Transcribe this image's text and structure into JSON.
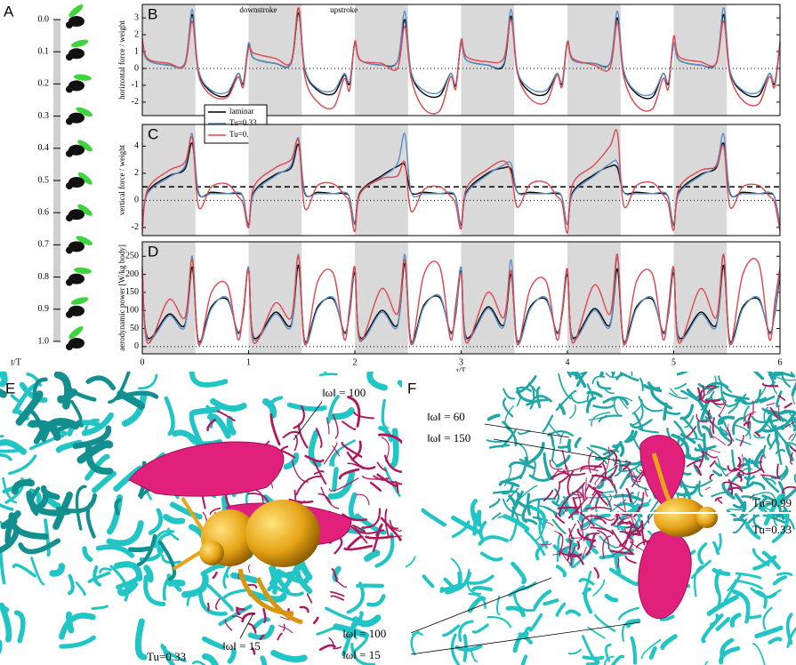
{
  "panel_a": {
    "label": "A",
    "times": [
      "0.0",
      "0.1",
      "0.2",
      "0.3",
      "0.4",
      "0.5",
      "0.6",
      "0.7",
      "0.8",
      "0.9",
      "1.0"
    ],
    "axis_label": "t/T"
  },
  "chart_data": [
    {
      "type": "line",
      "panel_label": "B",
      "ylabel": "horizontal force / weight",
      "xlim": [
        0,
        6
      ],
      "ylim": [
        -2.8,
        3.8
      ],
      "yticks": [
        -2,
        -1,
        0,
        1,
        2,
        3
      ],
      "shaded": [
        [
          0,
          0.5
        ],
        [
          1,
          1.5
        ],
        [
          2,
          2.5
        ],
        [
          3,
          3.5
        ],
        [
          4,
          4.5
        ],
        [
          5,
          5.5
        ]
      ],
      "reference_lines": [
        {
          "y": 0,
          "style": "dotted"
        }
      ],
      "annotations": [
        "downstroke",
        "upstroke"
      ],
      "legend_position": "bottom-left",
      "x": [
        0,
        0.05,
        0.25,
        0.4,
        0.47,
        0.53,
        0.65,
        0.8,
        0.9,
        0.95,
        1,
        1.05,
        1.25,
        1.4,
        1.47,
        1.53,
        1.65,
        1.8,
        1.9,
        1.95,
        2,
        2.05,
        2.25,
        2.4,
        2.47,
        2.53,
        2.65,
        2.8,
        2.9,
        2.95,
        3,
        3.05,
        3.25,
        3.4,
        3.47,
        3.53,
        3.65,
        3.8,
        3.9,
        3.95,
        4,
        4.05,
        4.25,
        4.4,
        4.47,
        4.53,
        4.65,
        4.8,
        4.9,
        4.95,
        5,
        5.05,
        5.25,
        5.4,
        5.47,
        5.53,
        5.65,
        5.8,
        5.9,
        5.95,
        6
      ],
      "series": [
        {
          "name": "laminar",
          "color": "#000000",
          "values": [
            1.5,
            0.5,
            0.2,
            0.3,
            3.2,
            -0.2,
            -1.4,
            -1.6,
            -0.3,
            -0.9,
            1.4,
            0.6,
            0.3,
            0.3,
            3.3,
            -0.1,
            -1.3,
            -1.5,
            -0.4,
            -0.9,
            1.5,
            0.5,
            0.2,
            0.4,
            2.9,
            -0.3,
            -1.5,
            -1.6,
            -0.3,
            -1.0,
            1.5,
            0.5,
            0.2,
            0.2,
            3.1,
            -0.2,
            -1.4,
            -1.5,
            -0.3,
            -0.9,
            1.6,
            0.5,
            0.3,
            0.3,
            3.0,
            -0.2,
            -1.5,
            -1.7,
            -0.3,
            -0.9,
            1.5,
            0.5,
            0.2,
            0.3,
            3.2,
            -0.2,
            -1.4,
            -1.6,
            -0.3,
            -0.9,
            1.5
          ]
        },
        {
          "name": "Tu=0.33",
          "color": "#5b8fc9",
          "values": [
            1.5,
            0.5,
            0.2,
            0.3,
            3.5,
            -0.1,
            -1.3,
            -1.4,
            -0.3,
            -0.8,
            1.5,
            0.6,
            0.3,
            0.3,
            3.6,
            0.0,
            -1.2,
            -1.3,
            -0.3,
            -0.8,
            1.5,
            0.5,
            0.2,
            0.4,
            3.4,
            -0.2,
            -1.3,
            -1.4,
            -0.3,
            -0.9,
            1.5,
            0.5,
            0.2,
            0.3,
            3.5,
            -0.1,
            -1.2,
            -1.3,
            -0.3,
            -0.8,
            1.6,
            0.5,
            0.3,
            0.3,
            3.4,
            -0.1,
            -1.4,
            -1.5,
            -0.3,
            -0.8,
            1.5,
            0.5,
            0.2,
            0.3,
            3.6,
            -0.1,
            -1.3,
            -1.4,
            -0.3,
            -0.8,
            1.5
          ]
        },
        {
          "name": "Tu=0.99",
          "color": "#e0474c",
          "values": [
            1.8,
            0.6,
            0.3,
            0.2,
            2.8,
            -0.4,
            -1.6,
            -1.7,
            -0.5,
            -1.1,
            1.2,
            0.9,
            0.6,
            0.4,
            3.6,
            -0.5,
            -2.0,
            -2.3,
            -0.6,
            -1.3,
            1.6,
            0.5,
            0.3,
            0.0,
            2.5,
            -0.6,
            -2.4,
            -2.5,
            -0.5,
            -1.2,
            1.7,
            0.7,
            0.4,
            0.6,
            2.9,
            -0.3,
            -1.8,
            -2.0,
            -0.4,
            -1.1,
            1.5,
            0.6,
            0.2,
            0.0,
            2.7,
            -0.5,
            -2.2,
            -2.4,
            -0.6,
            -1.2,
            1.9,
            0.7,
            0.4,
            0.3,
            2.8,
            -0.4,
            -1.9,
            -2.1,
            -0.5,
            -1.1,
            1.6
          ]
        }
      ]
    },
    {
      "type": "line",
      "panel_label": "C",
      "ylabel": "vertical force / weight",
      "xlim": [
        0,
        6
      ],
      "ylim": [
        -2.6,
        5.6
      ],
      "yticks": [
        -2,
        0,
        2,
        4
      ],
      "shaded": [
        [
          0,
          0.5
        ],
        [
          1,
          1.5
        ],
        [
          2,
          2.5
        ],
        [
          3,
          3.5
        ],
        [
          4,
          4.5
        ],
        [
          5,
          5.5
        ]
      ],
      "reference_lines": [
        {
          "y": 0,
          "style": "dotted"
        },
        {
          "y": 1,
          "style": "dashed"
        }
      ],
      "x": [
        0,
        0.05,
        0.25,
        0.4,
        0.47,
        0.53,
        0.65,
        0.8,
        0.9,
        0.95,
        1,
        1.05,
        1.25,
        1.4,
        1.47,
        1.53,
        1.65,
        1.8,
        1.9,
        1.95,
        2,
        2.05,
        2.25,
        2.4,
        2.47,
        2.53,
        2.65,
        2.8,
        2.9,
        2.95,
        3,
        3.05,
        3.25,
        3.4,
        3.47,
        3.53,
        3.65,
        3.8,
        3.9,
        3.95,
        4,
        4.05,
        4.25,
        4.4,
        4.47,
        4.53,
        4.65,
        4.8,
        4.9,
        4.95,
        5,
        5.05,
        5.25,
        5.4,
        5.47,
        5.53,
        5.65,
        5.8,
        5.9,
        5.95,
        6
      ],
      "series": [
        {
          "name": "laminar",
          "color": "#000000",
          "values": [
            -1.8,
            0.6,
            1.8,
            2.3,
            4.2,
            0.5,
            0.6,
            0.5,
            0.5,
            0.2,
            -1.8,
            0.6,
            1.9,
            2.4,
            4.1,
            0.5,
            0.6,
            0.5,
            0.5,
            0.2,
            -1.7,
            0.6,
            1.8,
            2.5,
            2.6,
            0.6,
            0.6,
            0.5,
            0.5,
            0.2,
            -1.8,
            0.6,
            2.0,
            2.4,
            2.3,
            0.6,
            0.6,
            0.5,
            0.5,
            0.2,
            -1.8,
            0.6,
            1.9,
            2.5,
            2.4,
            0.6,
            0.6,
            0.5,
            0.5,
            0.2,
            -1.8,
            0.6,
            1.9,
            2.4,
            4.2,
            0.5,
            0.6,
            0.5,
            0.5,
            0.2,
            -1.8
          ]
        },
        {
          "name": "Tu=0.33",
          "color": "#5b8fc9",
          "values": [
            -1.8,
            0.5,
            1.7,
            2.5,
            4.9,
            0.6,
            0.5,
            0.5,
            0.6,
            0.2,
            -1.9,
            0.5,
            1.8,
            2.6,
            4.6,
            0.6,
            0.5,
            0.5,
            0.6,
            0.2,
            -1.8,
            0.5,
            1.7,
            2.7,
            4.9,
            0.6,
            0.5,
            0.5,
            0.6,
            0.2,
            -1.9,
            0.5,
            1.9,
            2.6,
            2.7,
            0.6,
            0.5,
            0.5,
            0.6,
            0.2,
            -1.8,
            0.5,
            1.8,
            2.7,
            2.8,
            0.6,
            0.5,
            0.5,
            0.6,
            0.2,
            -1.9,
            0.5,
            1.8,
            2.6,
            4.9,
            0.6,
            0.5,
            0.5,
            0.6,
            0.2,
            -1.8
          ]
        },
        {
          "name": "Tu=0.99",
          "color": "#e0474c",
          "values": [
            -2.3,
            0.8,
            2.2,
            2.8,
            4.6,
            -0.5,
            1.0,
            1.2,
            0.3,
            -0.3,
            -2.0,
            1.0,
            2.4,
            3.0,
            4.4,
            -0.6,
            1.1,
            1.2,
            0.4,
            -0.2,
            -2.3,
            0.5,
            1.6,
            1.8,
            2.8,
            -0.8,
            0.8,
            1.0,
            0.3,
            -0.3,
            -2.1,
            0.9,
            2.3,
            2.9,
            2.0,
            -0.5,
            1.2,
            1.3,
            0.3,
            -0.2,
            -2.4,
            1.2,
            2.6,
            4.0,
            5.0,
            -0.4,
            1.1,
            1.3,
            0.4,
            -0.3,
            -2.2,
            0.9,
            2.2,
            2.5,
            4.0,
            -0.5,
            1.0,
            1.1,
            0.3,
            -0.2,
            -2.3
          ]
        }
      ]
    },
    {
      "type": "line",
      "panel_label": "D",
      "ylabel": "aerodynamic power [W/kg body]",
      "xlabel": "t/T",
      "xlim": [
        0,
        6
      ],
      "ylim": [
        -20,
        290
      ],
      "yticks": [
        0,
        50,
        100,
        150,
        200,
        250
      ],
      "xticks": [
        0,
        1,
        2,
        3,
        4,
        5,
        6
      ],
      "shaded": [
        [
          0,
          0.5
        ],
        [
          1,
          1.5
        ],
        [
          2,
          2.5
        ],
        [
          3,
          3.5
        ],
        [
          4,
          4.5
        ],
        [
          5,
          5.5
        ]
      ],
      "reference_lines": [
        {
          "y": 0,
          "style": "dotted"
        }
      ],
      "x": [
        0,
        0.05,
        0.25,
        0.4,
        0.47,
        0.53,
        0.65,
        0.8,
        0.9,
        0.95,
        1,
        1.05,
        1.25,
        1.4,
        1.47,
        1.53,
        1.65,
        1.8,
        1.9,
        1.95,
        2,
        2.05,
        2.25,
        2.4,
        2.47,
        2.53,
        2.65,
        2.8,
        2.9,
        2.95,
        3,
        3.05,
        3.25,
        3.4,
        3.47,
        3.53,
        3.65,
        3.8,
        3.9,
        3.95,
        4,
        4.05,
        4.25,
        4.4,
        4.47,
        4.53,
        4.65,
        4.8,
        4.9,
        4.95,
        5,
        5.05,
        5.25,
        5.4,
        5.47,
        5.53,
        5.65,
        5.8,
        5.9,
        5.95,
        6
      ],
      "series": [
        {
          "name": "laminar",
          "color": "#000000",
          "values": [
            200,
            25,
            90,
            60,
            220,
            15,
            110,
            130,
            40,
            90,
            215,
            25,
            95,
            60,
            225,
            15,
            110,
            130,
            40,
            90,
            205,
            25,
            100,
            60,
            230,
            15,
            115,
            135,
            40,
            90,
            210,
            25,
            110,
            60,
            200,
            15,
            110,
            130,
            40,
            90,
            200,
            25,
            105,
            60,
            215,
            15,
            110,
            130,
            40,
            90,
            205,
            25,
            95,
            60,
            225,
            15,
            110,
            130,
            40,
            90,
            200
          ]
        },
        {
          "name": "Tu=0.33",
          "color": "#5b8fc9",
          "values": [
            210,
            20,
            85,
            55,
            250,
            10,
            105,
            135,
            35,
            95,
            220,
            20,
            90,
            55,
            255,
            10,
            105,
            135,
            35,
            95,
            215,
            20,
            95,
            55,
            255,
            10,
            110,
            140,
            35,
            95,
            220,
            20,
            105,
            55,
            240,
            10,
            105,
            135,
            35,
            95,
            210,
            20,
            100,
            55,
            245,
            10,
            105,
            135,
            35,
            95,
            215,
            20,
            90,
            55,
            255,
            10,
            105,
            135,
            35,
            95,
            210
          ]
        },
        {
          "name": "Tu=0.99",
          "color": "#e0474c",
          "values": [
            220,
            10,
            130,
            80,
            240,
            5,
            150,
            170,
            20,
            100,
            210,
            10,
            120,
            80,
            250,
            5,
            180,
            200,
            20,
            110,
            220,
            15,
            160,
            90,
            240,
            5,
            200,
            220,
            20,
            120,
            200,
            10,
            150,
            80,
            210,
            5,
            160,
            180,
            20,
            100,
            215,
            10,
            170,
            90,
            255,
            5,
            180,
            200,
            20,
            110,
            220,
            10,
            160,
            80,
            255,
            5,
            200,
            230,
            20,
            120,
            220
          ]
        }
      ]
    }
  ],
  "panel_e": {
    "label": "E",
    "annotations": [
      "‖ω‖ = 100",
      "‖ω‖ = 15",
      "Tu=0.33"
    ]
  },
  "panel_f": {
    "label": "F",
    "annotations": [
      "‖ω‖ = 60",
      "‖ω‖ = 150",
      "Tu=0.99",
      "Tu=0.33",
      "‖ω‖ = 100",
      "‖ω‖ = 15"
    ]
  }
}
